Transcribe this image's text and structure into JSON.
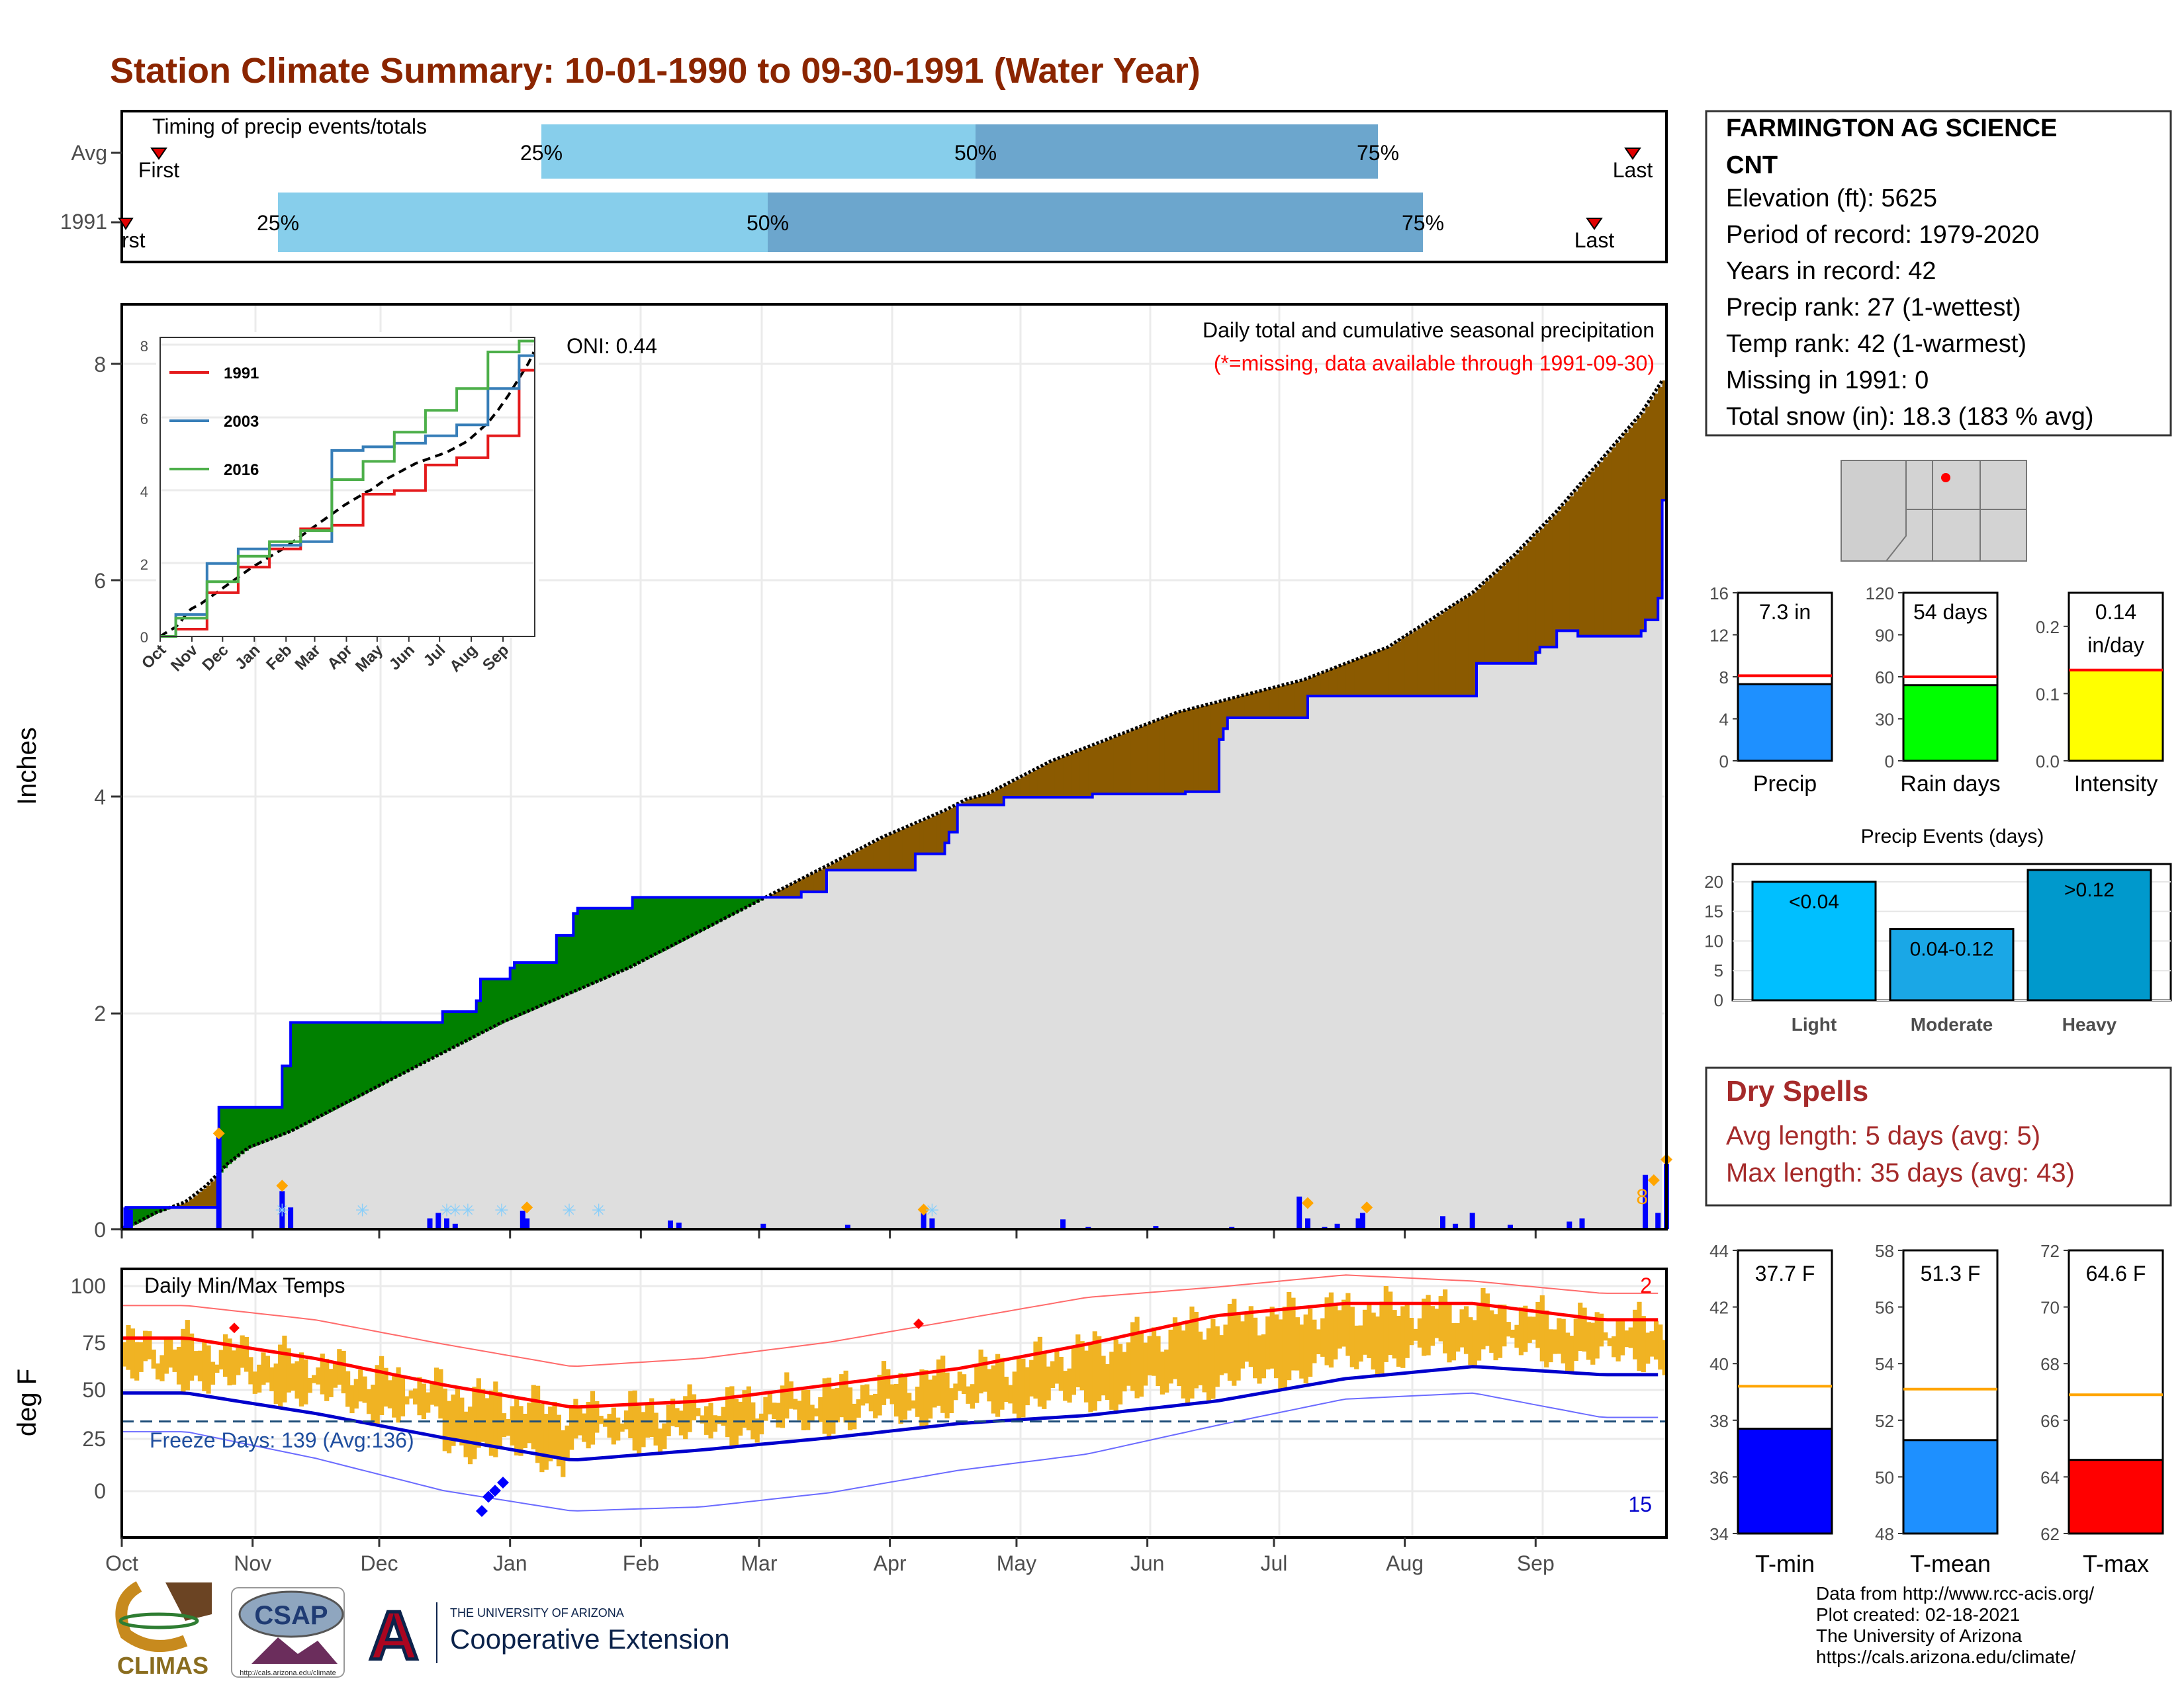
{
  "title": "Station Climate Summary: 10-01-1990 to 09-30-1991 (Water Year)",
  "timing": {
    "label": "Timing of precip events/totals",
    "rows": [
      "Avg",
      "1991"
    ],
    "first_label": "First",
    "first_label_1991": "rst",
    "last_label": "Last",
    "pct_labels": [
      "25%",
      "50%",
      "75%"
    ]
  },
  "main": {
    "ylabel": "Inches",
    "yticks": [
      "0",
      "2",
      "4",
      "6",
      "8"
    ],
    "oni": "ONI: 0.44",
    "note1": "Daily total and cumulative seasonal precipitation",
    "note2": "(*=missing, data available through 1991-09-30)",
    "corner": "8",
    "colors": {
      "above": "#008000",
      "below": "#8B5A00",
      "obs_line": "#0000FF",
      "avg_area": "#DEDEDE",
      "bars": "#0000FF",
      "extremes": "#FFA500",
      "snow": "#87CEFA"
    }
  },
  "inset": {
    "series": [
      "1991",
      "2003",
      "2016"
    ],
    "series_colors": [
      "#E41A1C",
      "#377EB8",
      "#4DAF4A"
    ],
    "xticks": [
      "Oct",
      "Nov",
      "Dec",
      "Jan",
      "Feb",
      "Mar",
      "Apr",
      "May",
      "Jun",
      "Jul",
      "Aug",
      "Sep"
    ],
    "yticks": [
      "0",
      "2",
      "4",
      "6",
      "8"
    ]
  },
  "temps": {
    "label": "Daily Min/Max Temps",
    "ylabel": "deg F",
    "yticks": [
      "0",
      "25",
      "50",
      "75",
      "100"
    ],
    "freeze": "Freeze Days: 139 (Avg:136)",
    "corner_top": "2",
    "corner_bottom": "15",
    "months": [
      "Oct",
      "Nov",
      "Dec",
      "Jan",
      "Feb",
      "Mar",
      "Apr",
      "May",
      "Jun",
      "Jul",
      "Aug",
      "Sep"
    ]
  },
  "station": {
    "name": "FARMINGTON AG SCIENCE",
    "sub": "CNT",
    "elevation": "Elevation (ft): 5625",
    "period": "Period of record: 1979-2020",
    "years": "Years in record: 42",
    "precip_rank": "Precip rank: 27 (1-wettest)",
    "temp_rank": "Temp rank: 42 (1-warmest)",
    "missing": "Missing in 1991: 0",
    "snow": "Total snow (in): 18.3 (183 % avg)"
  },
  "minis": [
    {
      "label": "Precip",
      "value_text": "7.3 in",
      "value": 7.3,
      "avg": 8.1,
      "ymax": 16,
      "yticks": [
        "0",
        "4",
        "8",
        "12",
        "16"
      ],
      "color": "#1E90FF"
    },
    {
      "label": "Rain days",
      "value_text": "54 days",
      "value": 54,
      "avg": 60,
      "ymax": 120,
      "yticks": [
        "0",
        "30",
        "60",
        "90",
        "120"
      ],
      "color": "#00FF00"
    },
    {
      "label": "Intensity",
      "value_text": "0.14",
      "value_text2": "in/day",
      "value": 0.135,
      "avg": 0.135,
      "ymax": 0.25,
      "yticks": [
        "0.0",
        "0.1",
        "0.2"
      ],
      "color": "#FFFF00"
    }
  ],
  "events": {
    "title": "Precip Events (days)",
    "yticks": [
      "0",
      "5",
      "10",
      "15",
      "20"
    ],
    "bars": [
      {
        "name": "Light",
        "label": "<0.04",
        "value": 20,
        "color": "#00BFFF"
      },
      {
        "name": "Moderate",
        "label": "0.04-0.12",
        "value": 12,
        "color": "#1AA7E6"
      },
      {
        "name": "Heavy",
        "label": ">0.12",
        "value": 22,
        "color": "#0099CC"
      }
    ]
  },
  "dry": {
    "title": "Dry Spells",
    "avg": "Avg length: 5 days (avg: 5)",
    "max": "Max length: 35 days (avg: 43)"
  },
  "tminis": [
    {
      "label": "T-min",
      "value_text": "37.7 F",
      "value": 37.7,
      "avg": 39.2,
      "ymin": 34,
      "ymax": 44,
      "yticks": [
        "34",
        "36",
        "38",
        "40",
        "42",
        "44"
      ],
      "color": "#0000FF"
    },
    {
      "label": "T-mean",
      "value_text": "51.3 F",
      "value": 51.3,
      "avg": 53.1,
      "ymin": 48,
      "ymax": 58,
      "yticks": [
        "48",
        "50",
        "52",
        "54",
        "56",
        "58"
      ],
      "color": "#1E90FF"
    },
    {
      "label": "T-max",
      "value_text": "64.6 F",
      "value": 64.6,
      "avg": 66.9,
      "ymin": 62,
      "ymax": 72,
      "yticks": [
        "62",
        "64",
        "66",
        "68",
        "70",
        "72"
      ],
      "color": "#FF0000"
    }
  ],
  "footer": {
    "line1": "Data from http://www.rcc-acis.org/",
    "line2": "Plot created: 02-18-2021",
    "line3": "The University of Arizona",
    "line4": "https://cals.arizona.edu/climate/"
  },
  "logos": {
    "climas": "CLIMAS",
    "csap": "CSAP",
    "csap_url": "http://cals.arizona.edu/climate",
    "ua_small": "THE UNIVERSITY OF ARIZONA",
    "ua_big": "Cooperative Extension",
    "ua_letter": "A"
  },
  "chart_data": [
    {
      "type": "bar",
      "title": "Timing of precip events/totals",
      "x_unit": "water-year day",
      "series": [
        {
          "name": "Avg",
          "first_day": 10,
          "p25_day": 119,
          "p50_day": 244,
          "p75_day": 366,
          "last_day": 452
        },
        {
          "name": "1991",
          "first_day": 1,
          "p25_day": 45,
          "p50_day": 186,
          "p75_day": 380,
          "last_day": 441
        }
      ]
    },
    {
      "type": "area",
      "title": "Daily total and cumulative seasonal precipitation",
      "ylabel": "Inches",
      "xlim_days": [
        0,
        365
      ],
      "ylim": [
        0,
        8.5
      ],
      "observed_cumulative_steps": [
        [
          0,
          0.02
        ],
        [
          1,
          0.2
        ],
        [
          22,
          0.2
        ],
        [
          23,
          1.12
        ],
        [
          37,
          1.12
        ],
        [
          38,
          1.5
        ],
        [
          40,
          1.9
        ],
        [
          75,
          1.9
        ],
        [
          76,
          2.0
        ],
        [
          84,
          2.1
        ],
        [
          85,
          2.3
        ],
        [
          92,
          2.4
        ],
        [
          93,
          2.45
        ],
        [
          102,
          2.45
        ],
        [
          103,
          2.7
        ],
        [
          107,
          2.9
        ],
        [
          108,
          2.95
        ],
        [
          120,
          2.95
        ],
        [
          121,
          3.05
        ],
        [
          160,
          3.05
        ],
        [
          161,
          3.1
        ],
        [
          166,
          3.1
        ],
        [
          167,
          3.3
        ],
        [
          187,
          3.3
        ],
        [
          188,
          3.45
        ],
        [
          195,
          3.55
        ],
        [
          196,
          3.65
        ],
        [
          198,
          3.9
        ],
        [
          208,
          3.9
        ],
        [
          209,
          3.97
        ],
        [
          230,
          4.0
        ],
        [
          251,
          4.0
        ],
        [
          252,
          4.02
        ],
        [
          260,
          4.5
        ],
        [
          261,
          4.6
        ],
        [
          262,
          4.7
        ],
        [
          280,
          4.7
        ],
        [
          281,
          4.9
        ],
        [
          320,
          4.9
        ],
        [
          321,
          5.2
        ],
        [
          335,
          5.3
        ],
        [
          336,
          5.35
        ],
        [
          340,
          5.5
        ],
        [
          345,
          5.45
        ],
        [
          360,
          5.5
        ],
        [
          361,
          5.6
        ],
        [
          364,
          5.8
        ],
        [
          365,
          6.7
        ],
        [
          366,
          7.3
        ]
      ],
      "average_cumulative": [
        [
          0,
          0
        ],
        [
          3,
          0.05
        ],
        [
          8,
          0.15
        ],
        [
          15,
          0.25
        ],
        [
          20,
          0.4
        ],
        [
          25,
          0.6
        ],
        [
          30,
          0.75
        ],
        [
          40,
          0.9
        ],
        [
          50,
          1.1
        ],
        [
          60,
          1.3
        ],
        [
          75,
          1.6
        ],
        [
          90,
          1.9
        ],
        [
          105,
          2.15
        ],
        [
          120,
          2.4
        ],
        [
          135,
          2.7
        ],
        [
          150,
          3.0
        ],
        [
          165,
          3.3
        ],
        [
          180,
          3.6
        ],
        [
          195,
          3.85
        ],
        [
          200,
          3.95
        ],
        [
          205,
          4.0
        ],
        [
          210,
          4.1
        ],
        [
          220,
          4.3
        ],
        [
          230,
          4.45
        ],
        [
          240,
          4.6
        ],
        [
          250,
          4.75
        ],
        [
          260,
          4.85
        ],
        [
          270,
          4.95
        ],
        [
          280,
          5.05
        ],
        [
          290,
          5.2
        ],
        [
          300,
          5.35
        ],
        [
          310,
          5.6
        ],
        [
          320,
          5.85
        ],
        [
          330,
          6.2
        ],
        [
          340,
          6.6
        ],
        [
          350,
          7.05
        ],
        [
          360,
          7.5
        ],
        [
          365,
          7.8
        ]
      ],
      "daily_bars": [
        [
          1,
          0.2
        ],
        [
          2,
          0.18
        ],
        [
          23,
          0.9
        ],
        [
          38,
          0.35
        ],
        [
          40,
          0.2
        ],
        [
          73,
          0.1
        ],
        [
          75,
          0.15
        ],
        [
          77,
          0.1
        ],
        [
          79,
          0.05
        ],
        [
          95,
          0.17
        ],
        [
          96,
          0.1
        ],
        [
          130,
          0.08
        ],
        [
          132,
          0.06
        ],
        [
          152,
          0.05
        ],
        [
          172,
          0.04
        ],
        [
          190,
          0.15
        ],
        [
          192,
          0.1
        ],
        [
          223,
          0.09
        ],
        [
          229,
          0.02
        ],
        [
          245,
          0.03
        ],
        [
          263,
          0.02
        ],
        [
          267,
          0.01
        ],
        [
          279,
          0.3
        ],
        [
          281,
          0.1
        ],
        [
          285,
          0.02
        ],
        [
          288,
          0.05
        ],
        [
          293,
          0.1
        ],
        [
          294,
          0.15
        ],
        [
          313,
          0.12
        ],
        [
          316,
          0.05
        ],
        [
          320,
          0.15
        ],
        [
          329,
          0.04
        ],
        [
          343,
          0.07
        ],
        [
          346,
          0.1
        ],
        [
          361,
          0.5
        ],
        [
          364,
          0.15
        ],
        [
          366,
          0.6
        ]
      ],
      "max_markers": [
        [
          23,
          0.88
        ],
        [
          38,
          0.4
        ],
        [
          96,
          0.2
        ],
        [
          190,
          0.18
        ],
        [
          281,
          0.24
        ],
        [
          295,
          0.2
        ],
        [
          363,
          0.45
        ],
        [
          366,
          0.64
        ]
      ],
      "snow_markers": [
        38,
        57,
        77,
        79,
        82,
        90,
        106,
        113,
        192
      ],
      "oni": 0.44
    },
    {
      "type": "line",
      "title": "Cumulative precipitation comparison",
      "x": [
        "Oct",
        "Nov",
        "Dec",
        "Jan",
        "Feb",
        "Mar",
        "Apr",
        "May",
        "Jun",
        "Jul",
        "Aug",
        "Sep"
      ],
      "ylim": [
        0,
        8
      ],
      "series": [
        {
          "name": "1991",
          "values": [
            0.2,
            1.2,
            1.9,
            2.4,
            2.95,
            3.05,
            3.9,
            4.0,
            4.7,
            4.9,
            5.5,
            7.3
          ]
        },
        {
          "name": "2003",
          "values": [
            0.6,
            2.0,
            2.4,
            2.5,
            2.6,
            5.1,
            5.2,
            5.3,
            5.5,
            5.8,
            6.8,
            7.7
          ]
        },
        {
          "name": "2016",
          "values": [
            0.5,
            1.5,
            2.2,
            2.6,
            2.9,
            4.3,
            4.8,
            5.6,
            6.2,
            6.8,
            7.8,
            8.1
          ]
        }
      ]
    },
    {
      "type": "area",
      "title": "Daily Min/Max Temps",
      "ylabel": "deg F",
      "ylim": [
        -20,
        110
      ],
      "x": [
        "Oct",
        "Nov",
        "Dec",
        "Jan",
        "Feb",
        "Mar",
        "Apr",
        "May",
        "Jun",
        "Jul",
        "Aug",
        "Sep"
      ],
      "monthly_avg_max": [
        73,
        63,
        50,
        39,
        42,
        50,
        58,
        70,
        84,
        90,
        90,
        82
      ],
      "monthly_avg_min": [
        46,
        36,
        24,
        13,
        18,
        24,
        31,
        35,
        42,
        53,
        59,
        55
      ],
      "monthly_record_max": [
        89,
        82,
        70,
        59,
        63,
        71,
        82,
        93,
        98,
        104,
        101,
        95
      ],
      "monthly_record_min": [
        27,
        14,
        -2,
        -12,
        -10,
        -3,
        8,
        16,
        30,
        43,
        46,
        34
      ],
      "freeze_threshold": 32,
      "freeze_days": 139,
      "freeze_days_avg": 136
    }
  ]
}
